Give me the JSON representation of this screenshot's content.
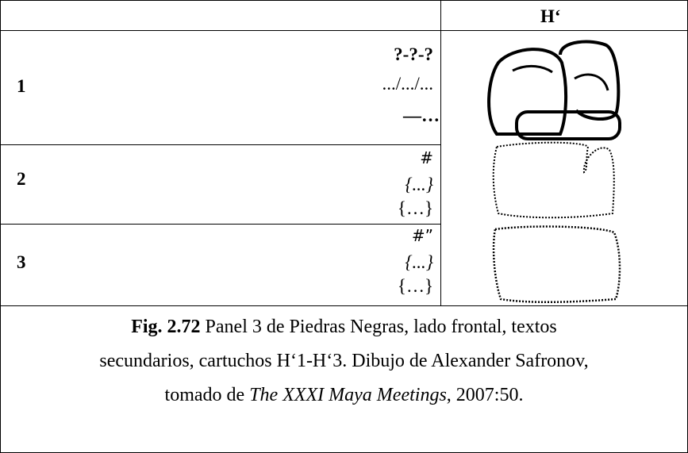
{
  "table": {
    "header": {
      "right": "H‘"
    },
    "rows": [
      {
        "number": "1",
        "lines": [
          "?-?-?",
          ".../.../...",
          "—…"
        ]
      },
      {
        "number": "2",
        "lines": [
          "#",
          "{...}",
          "{…}"
        ]
      },
      {
        "number": "3",
        "lines": [
          "#”",
          "{...}",
          "{…}"
        ]
      }
    ]
  },
  "caption": {
    "label": "Fig. 2.72",
    "lines": [
      "Panel 3 de Piedras Negras, lado frontal, textos",
      "secundarios, cartuchos H‘1-H‘3. Dibujo de Alexander Safronov,",
      "tomado de"
    ],
    "source_title": "The XXXI Maya Meetings",
    "source_suffix": ", 2007:50."
  }
}
